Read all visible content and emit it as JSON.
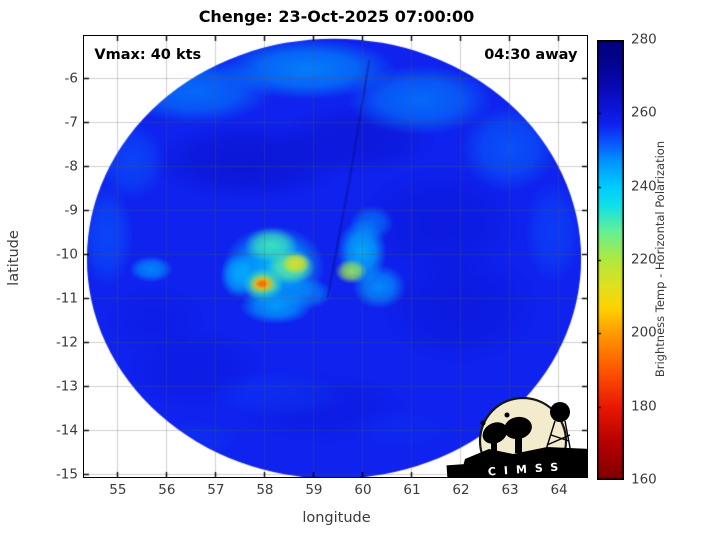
{
  "chart_data": {
    "type": "heatmap",
    "title": "Chenge: 23-Oct-2025 07:00:00",
    "annotations": {
      "vmax": "Vmax: 40 kts",
      "eta": "04:30 away"
    },
    "xlabel": "longitude",
    "ylabel": "latitude",
    "xlim": [
      54.33,
      64.59
    ],
    "ylim": [
      -15.07,
      -5.05
    ],
    "xticks": [
      55,
      56,
      57,
      58,
      59,
      60,
      61,
      62,
      63,
      64
    ],
    "yticks": [
      -6,
      -7,
      -8,
      -9,
      -10,
      -11,
      -12,
      -13,
      -14,
      -15
    ],
    "grid": true,
    "grid_color": "rgba(90,90,90,0.28)",
    "colorbar": {
      "label": "Brightness Temp - Horizontal Polarization",
      "min": 160,
      "max": 280,
      "ticks": [
        280,
        260,
        240,
        220,
        200,
        180,
        160
      ]
    },
    "colormap_stops": [
      [
        160,
        "#7f0000"
      ],
      [
        170,
        "#b40000"
      ],
      [
        180,
        "#e81800"
      ],
      [
        190,
        "#ff5500"
      ],
      [
        200,
        "#ff9a00"
      ],
      [
        207,
        "#ffd300"
      ],
      [
        213,
        "#e0e020"
      ],
      [
        220,
        "#b2e83c"
      ],
      [
        228,
        "#64f096"
      ],
      [
        235,
        "#10e0e8"
      ],
      [
        240,
        "#00ccff"
      ],
      [
        247,
        "#0095ff"
      ],
      [
        252,
        "#0a56ff"
      ],
      [
        257,
        "#0f22ee"
      ],
      [
        262,
        "#0c14d6"
      ],
      [
        268,
        "#0808b0"
      ],
      [
        274,
        "#04048f"
      ],
      [
        280,
        "#00007f"
      ]
    ],
    "swath": {
      "center": [
        59.43,
        -10.11
      ],
      "rx": 5.04,
      "ry": 5.0,
      "base_temp": 257
    },
    "features": [
      [
        57.7,
        -7.9,
        2.0,
        0.9,
        265,
        0.55
      ],
      [
        59.9,
        -7.4,
        1.6,
        0.8,
        264,
        0.5
      ],
      [
        61.6,
        -9.3,
        1.6,
        1.3,
        263,
        0.45
      ],
      [
        62.0,
        -11.2,
        1.6,
        1.3,
        263,
        0.45
      ],
      [
        56.6,
        -12.6,
        1.4,
        0.9,
        262,
        0.4
      ],
      [
        59.2,
        -13.5,
        1.7,
        0.8,
        262,
        0.4
      ],
      [
        55.8,
        -11.5,
        1.0,
        0.8,
        261,
        0.35
      ],
      [
        56.6,
        -6.3,
        1.6,
        0.75,
        248,
        0.7
      ],
      [
        58.9,
        -5.8,
        1.8,
        0.7,
        246,
        0.75
      ],
      [
        61.2,
        -6.5,
        1.5,
        0.8,
        248,
        0.7
      ],
      [
        63.0,
        -7.6,
        1.0,
        1.0,
        250,
        0.6
      ],
      [
        63.9,
        -9.5,
        0.6,
        1.2,
        252,
        0.5
      ],
      [
        54.8,
        -9.6,
        0.55,
        1.2,
        251,
        0.55
      ],
      [
        55.3,
        -7.9,
        0.7,
        0.9,
        251,
        0.5
      ],
      [
        58.3,
        -13.2,
        1.4,
        0.55,
        254,
        0.4
      ],
      [
        56.6,
        -14.2,
        1.0,
        0.45,
        254,
        0.35
      ],
      [
        60.8,
        -14.0,
        1.1,
        0.5,
        255,
        0.3
      ],
      [
        58.2,
        -10.3,
        1.05,
        0.95,
        240,
        0.85
      ],
      [
        58.15,
        -9.8,
        0.55,
        0.4,
        231,
        0.9
      ],
      [
        58.55,
        -10.3,
        0.5,
        0.4,
        228,
        0.9
      ],
      [
        58.65,
        -10.22,
        0.3,
        0.25,
        212,
        0.9
      ],
      [
        57.98,
        -10.7,
        0.42,
        0.38,
        228,
        0.9
      ],
      [
        57.97,
        -10.68,
        0.27,
        0.22,
        203,
        0.95
      ],
      [
        57.96,
        -10.68,
        0.13,
        0.1,
        192,
        0.95
      ],
      [
        58.25,
        -11.2,
        0.75,
        0.4,
        243,
        0.8
      ],
      [
        57.45,
        -10.5,
        0.35,
        0.5,
        241,
        0.7
      ],
      [
        58.9,
        -10.9,
        0.5,
        0.35,
        244,
        0.6
      ],
      [
        60.0,
        -9.95,
        0.5,
        0.75,
        240,
        0.8
      ],
      [
        59.78,
        -10.4,
        0.33,
        0.28,
        222,
        0.9
      ],
      [
        60.35,
        -10.75,
        0.55,
        0.5,
        243,
        0.7
      ],
      [
        60.2,
        -9.3,
        0.45,
        0.4,
        247,
        0.6
      ],
      [
        55.7,
        -10.35,
        0.45,
        0.3,
        246,
        0.8
      ]
    ],
    "seam": {
      "points": [
        [
          60.15,
          -5.6
        ],
        [
          59.75,
          -8.3
        ],
        [
          59.3,
          -11.0
        ]
      ],
      "color": "rgba(8,8,100,0.35)"
    },
    "logo": {
      "text": "CIMSS",
      "circle_color": "#f2ebce"
    }
  }
}
